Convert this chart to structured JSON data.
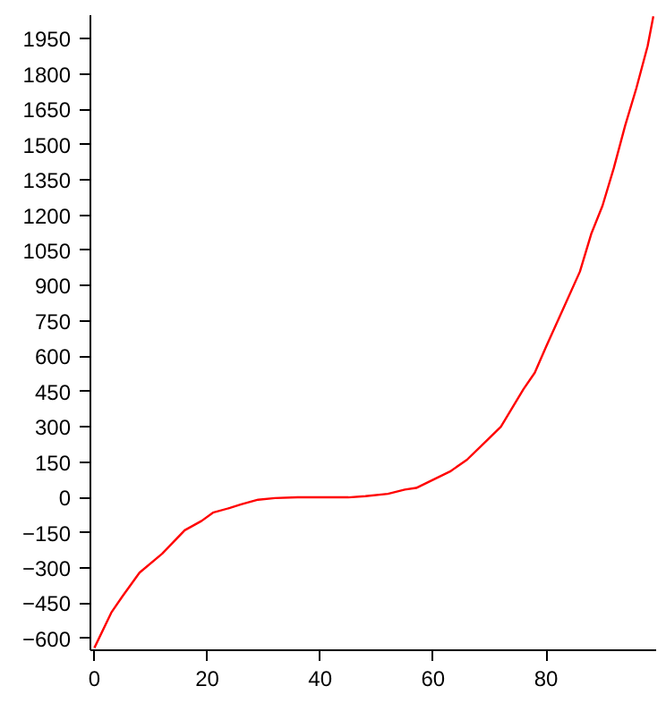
{
  "chart_data": {
    "type": "line",
    "x": [
      0,
      3,
      5,
      8,
      12,
      16,
      19,
      21,
      24,
      26,
      29,
      32,
      36,
      40,
      45,
      48,
      52,
      55,
      57,
      60,
      63,
      66,
      69,
      72,
      74,
      76,
      78,
      80,
      83,
      86,
      88,
      90,
      92,
      94,
      96,
      98,
      99
    ],
    "series": [
      {
        "color": "#ff0000",
        "values": [
          -640,
          -490,
          -420,
          -320,
          -240,
          -140,
          -100,
          -65,
          -45,
          -30,
          -10,
          -3,
          0,
          0,
          0,
          5,
          15,
          33,
          40,
          75,
          110,
          160,
          230,
          300,
          380,
          460,
          530,
          640,
          800,
          960,
          1120,
          1240,
          1400,
          1580,
          1740,
          1920,
          2045
        ]
      }
    ],
    "xlim": [
      -0.7,
      99.5
    ],
    "ylim": [
      -650,
      2050
    ],
    "xticks": [
      0,
      20,
      40,
      60,
      80
    ],
    "yticks": [
      -600,
      -450,
      -300,
      -150,
      0,
      150,
      300,
      450,
      600,
      750,
      900,
      1050,
      1200,
      1350,
      1500,
      1650,
      1800,
      1950
    ],
    "grid": false
  }
}
